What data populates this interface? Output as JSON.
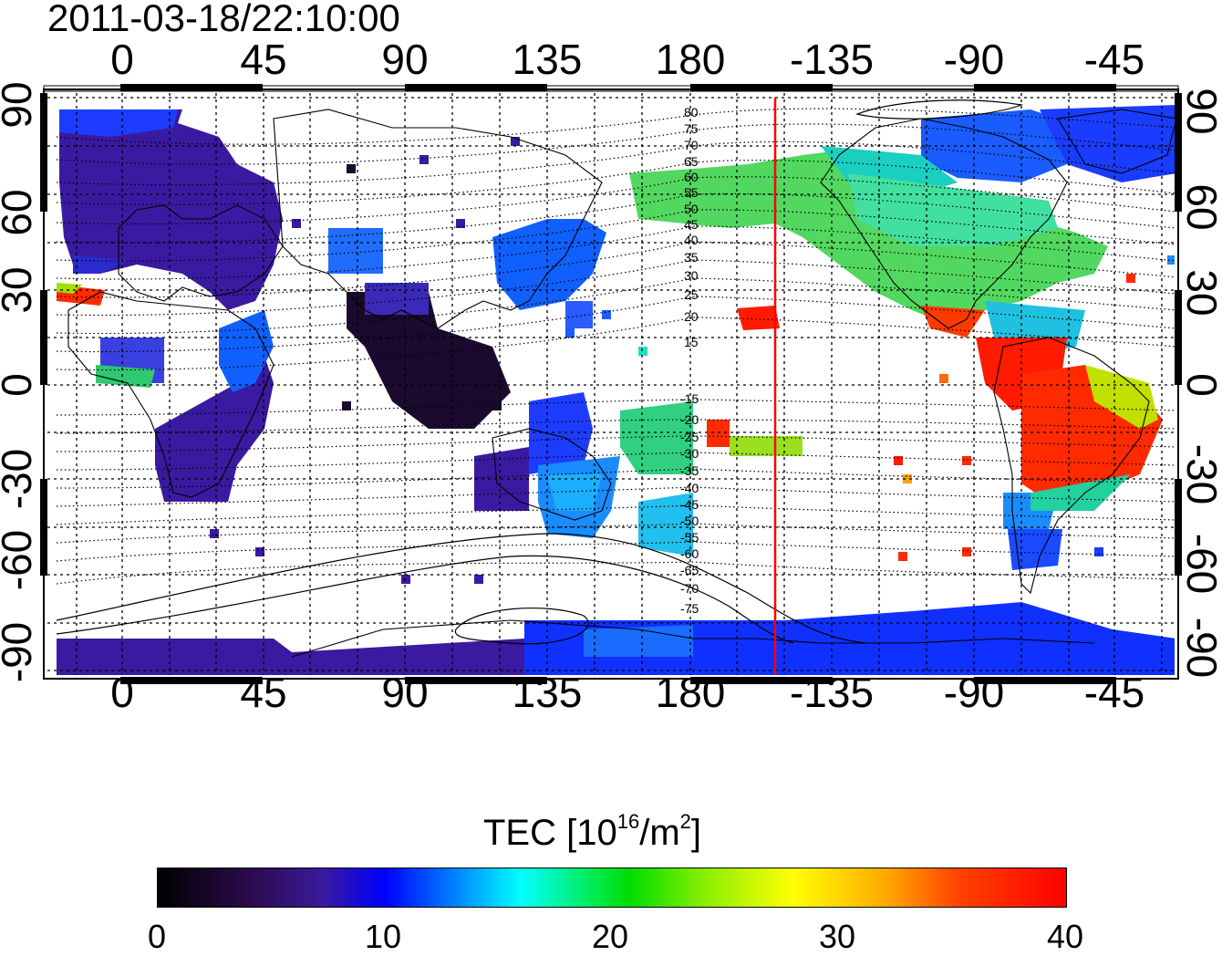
{
  "timestamp": "2011-03-18/22:10:00",
  "map": {
    "x_ticks": [
      "0",
      "45",
      "90",
      "135",
      "180",
      "-135",
      "-90",
      "-45"
    ],
    "y_ticks_left": [
      "90",
      "60",
      "30",
      "0",
      "-30",
      "-60",
      "-90"
    ],
    "y_ticks_right": [
      "90",
      "60",
      "30",
      "0",
      "-30",
      "-60",
      "-90"
    ],
    "magnetic_latitude_labels_north": [
      "80",
      "75",
      "70",
      "65",
      "60",
      "55",
      "50",
      "45",
      "40",
      "35",
      "30",
      "25",
      "20",
      "15"
    ],
    "magnetic_latitude_labels_south": [
      "-15",
      "-20",
      "-25",
      "-30",
      "-35",
      "-40",
      "-45",
      "-50",
      "-55",
      "-60",
      "-65",
      "-70",
      "-75"
    ],
    "terminator_longitude": -152,
    "terminator_color": "#ff0000"
  },
  "colorbar": {
    "title_prefix": "TEC  [10",
    "title_exp": "16",
    "title_mid": "/m",
    "title_exp2": "2",
    "title_suffix": "]",
    "ticks": [
      "0",
      "10",
      "20",
      "30",
      "40"
    ],
    "min": 0,
    "max": 40
  }
}
